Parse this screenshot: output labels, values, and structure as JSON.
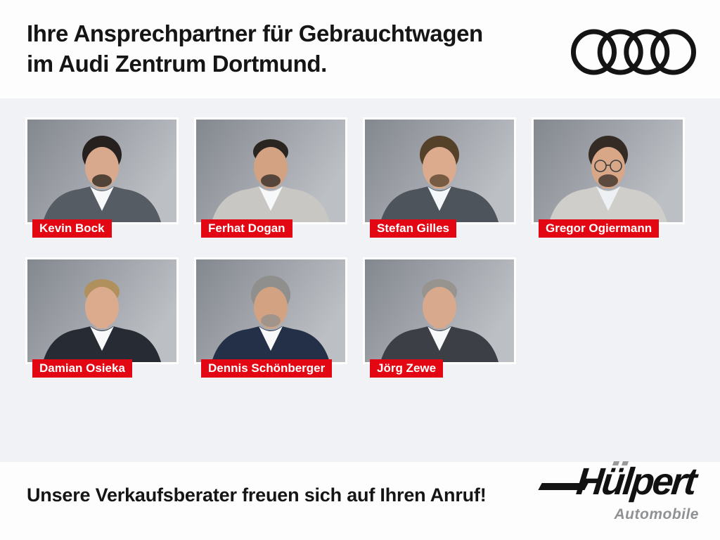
{
  "header": {
    "title_line1": "Ihre Ansprechpartner für Gebrauchtwagen",
    "title_line2": "im Audi Zentrum Dortmund.",
    "brand_logo": "audi-rings-icon"
  },
  "people": [
    {
      "name": "Kevin Bock",
      "hair": "#26211e",
      "suit": "#565c63",
      "shirt": "#f7f8f9",
      "skin": "#d8a98c",
      "beard": true,
      "glasses": false,
      "thin_hair": false
    },
    {
      "name": "Ferhat Dogan",
      "hair": "#2b2522",
      "suit": "#c8c7c4",
      "shirt": "#f7f8f9",
      "skin": "#d3a283",
      "beard": true,
      "glasses": false,
      "thin_hair": true
    },
    {
      "name": "Stefan Gilles",
      "hair": "#55402a",
      "suit": "#4d545c",
      "shirt": "#f4f7fa",
      "skin": "#dcab8d",
      "beard": true,
      "glasses": false,
      "thin_hair": false
    },
    {
      "name": "Gregor Ogiermann",
      "hair": "#342b25",
      "suit": "#cfcecb",
      "shirt": "#eef1f3",
      "skin": "#d8a788",
      "beard": true,
      "glasses": true,
      "thin_hair": false
    },
    {
      "name": "Damian Osieka",
      "hair": "#b0905c",
      "suit": "#272b33",
      "shirt": "#f7f8f9",
      "skin": "#dcab8d",
      "beard": false,
      "glasses": false,
      "thin_hair": true
    },
    {
      "name": "Dennis Schönberger",
      "hair": "#8f8f8d",
      "suit": "#243048",
      "shirt": "#f7f8f9",
      "skin": "#d3a283",
      "beard": true,
      "glasses": false,
      "thin_hair": false
    },
    {
      "name": "Jörg Zewe",
      "hair": "#97948f",
      "suit": "#3c4046",
      "shirt": "#f7f8f9",
      "skin": "#d8a98c",
      "beard": false,
      "glasses": false,
      "thin_hair": true
    }
  ],
  "footer": {
    "message": "Unsere Verkaufsberater freuen sich auf Ihren Anruf!",
    "dealer_logo": {
      "name": "huelpert-logo",
      "wordmark": "Hülpert",
      "subtitle": "Automobile"
    }
  },
  "colors": {
    "badge_red": "#e30613",
    "badge_text": "#ffffff",
    "band_background": "#f1f2f5",
    "page_background": "#fdfdfe",
    "logo_black": "#141414"
  }
}
